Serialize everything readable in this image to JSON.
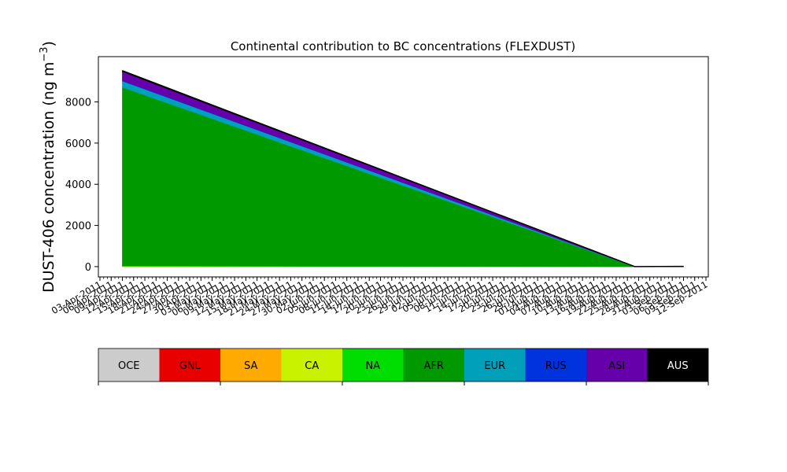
{
  "chart_data": {
    "type": "area",
    "title": "Continental contribution to BC concentrations (FLEXDUST)",
    "ylabel_main": "DUST-406 concentration (ng m",
    "ylabel_exp": "−3",
    "ylabel_close": ")",
    "xlabel": "",
    "stacked": true,
    "x_start": "2011-04-03",
    "x_end": "2011-09-12",
    "x_data_start": "2011-04-09",
    "x_data_end": "2011-09-06",
    "x_data_break": "2011-08-24",
    "ylim": [
      -500,
      10200
    ],
    "yticks": [
      0,
      2000,
      4000,
      6000,
      8000
    ],
    "grid": false,
    "x": [
      "2011-04-09",
      "2011-08-24",
      "2011-09-06"
    ],
    "series": [
      {
        "name": "OCE",
        "color": "#cccccc",
        "values": [
          0,
          0,
          0
        ]
      },
      {
        "name": "GNL",
        "color": "#e80000",
        "values": [
          0,
          0,
          0
        ]
      },
      {
        "name": "SA",
        "color": "#ffaa00",
        "values": [
          5,
          0,
          0
        ]
      },
      {
        "name": "CA",
        "color": "#c8f200",
        "values": [
          20,
          0,
          0
        ]
      },
      {
        "name": "NA",
        "color": "#00dd00",
        "values": [
          10,
          0,
          0
        ]
      },
      {
        "name": "AFR",
        "color": "#009a00",
        "values": [
          8680,
          0,
          0
        ]
      },
      {
        "name": "EUR",
        "color": "#00a0bb",
        "values": [
          300,
          0,
          0
        ]
      },
      {
        "name": "RUS",
        "color": "#0033dd",
        "values": [
          30,
          0,
          5
        ]
      },
      {
        "name": "ASI",
        "color": "#6600aa",
        "values": [
          430,
          0,
          5
        ]
      },
      {
        "name": "AUS",
        "color": "#000000",
        "values": [
          45,
          0,
          0
        ]
      }
    ],
    "xtick_labels": [
      "03-Apr-2011",
      "06-Apr-2011",
      "09-Apr-2011",
      "12-Apr-2011",
      "15-Apr-2011",
      "18-Apr-2011",
      "21-Apr-2011",
      "24-Apr-2011",
      "27-Apr-2011",
      "30-Apr-2011",
      "03-May-2011",
      "06-May-2011",
      "09-May-2011",
      "12-May-2011",
      "15-May-2011",
      "18-May-2011",
      "21-May-2011",
      "24-May-2011",
      "27-May-2011",
      "30-May-2011",
      "02-Jun-2011",
      "05-Jun-2011",
      "08-Jun-2011",
      "11-Jun-2011",
      "14-Jun-2011",
      "17-Jun-2011",
      "20-Jun-2011",
      "23-Jun-2011",
      "26-Jun-2011",
      "29-Jun-2011",
      "02-Jul-2011",
      "05-Jul-2011",
      "08-Jul-2011",
      "11-Jul-2011",
      "14-Jul-2011",
      "17-Jul-2011",
      "20-Jul-2011",
      "23-Jul-2011",
      "26-Jul-2011",
      "29-Jul-2011",
      "01-Aug-2011",
      "04-Aug-2011",
      "07-Aug-2011",
      "10-Aug-2011",
      "13-Aug-2011",
      "16-Aug-2011",
      "19-Aug-2011",
      "22-Aug-2011",
      "25-Aug-2011",
      "28-Aug-2011",
      "31-Aug-2011",
      "03-Sep-2011",
      "06-Sep-2011",
      "09-Sep-2011",
      "12-Sep-2011"
    ],
    "legend": {
      "placement": "bottom",
      "entries": [
        {
          "label": "OCE",
          "color": "#cccccc"
        },
        {
          "label": "GNL",
          "color": "#e80000"
        },
        {
          "label": "SA",
          "color": "#ffaa00"
        },
        {
          "label": "CA",
          "color": "#c8f200"
        },
        {
          "label": "NA",
          "color": "#00dd00"
        },
        {
          "label": "AFR",
          "color": "#009a00"
        },
        {
          "label": "EUR",
          "color": "#00a0bb"
        },
        {
          "label": "RUS",
          "color": "#0033dd"
        },
        {
          "label": "ASI",
          "color": "#6600aa"
        },
        {
          "label": "AUS",
          "color": "#000000"
        }
      ]
    }
  }
}
